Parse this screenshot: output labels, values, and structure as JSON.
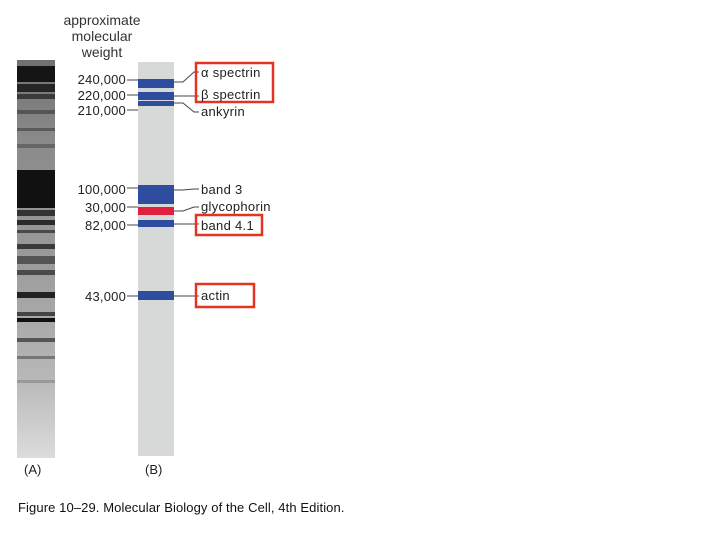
{
  "header": {
    "line1": "approximate",
    "line2": "molecular",
    "line3": "weight"
  },
  "lanes": {
    "a": "(A)",
    "b": "(B)"
  },
  "weights": [
    "240,000",
    "220,000",
    "210,000",
    "100,000",
    "30,000",
    "82,000",
    "43,000"
  ],
  "proteins": [
    "α spectrin",
    "β spectrin",
    "ankyrin",
    "band 3",
    "glycophorin",
    "band 4.1",
    "actin"
  ],
  "caption": "Figure 10–29. Molecular Biology of the Cell, 4th Edition.",
  "colors": {
    "band": "#2f4d9e",
    "glycophorin_band": "#e02040",
    "highlight_box": "#e53322",
    "lane": "#d7d9d8"
  }
}
